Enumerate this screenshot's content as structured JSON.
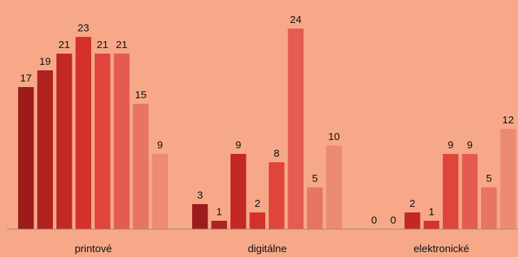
{
  "chart_data": {
    "type": "bar",
    "categories": [
      "printové",
      "digitálne",
      "elektronické"
    ],
    "series": [
      {
        "values": [
          17,
          3,
          0
        ],
        "color": "#9b1c1a"
      },
      {
        "values": [
          19,
          1,
          0
        ],
        "color": "#b1221f"
      },
      {
        "values": [
          21,
          9,
          2
        ],
        "color": "#c22924"
      },
      {
        "values": [
          23,
          2,
          1
        ],
        "color": "#d4312b"
      },
      {
        "values": [
          21,
          8,
          9
        ],
        "color": "#df453c"
      },
      {
        "values": [
          21,
          24,
          9
        ],
        "color": "#e35c4f"
      },
      {
        "values": [
          15,
          5,
          5
        ],
        "color": "#e87462"
      },
      {
        "values": [
          9,
          10,
          12
        ],
        "color": "#ec8a74"
      }
    ],
    "ylim": [
      0,
      26
    ],
    "grid": false,
    "legend": "none"
  }
}
